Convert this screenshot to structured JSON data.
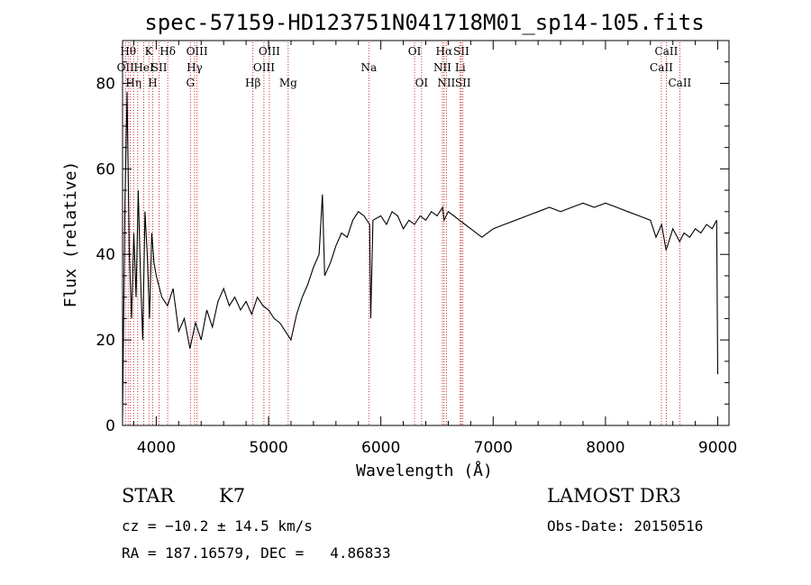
{
  "chart_data": {
    "type": "line",
    "title": "spec-57159-HD123751N041718M01_sp14-105.fits",
    "xlabel": "Wavelength (Å)",
    "ylabel": "Flux (relative)",
    "xlim": [
      3700,
      9100
    ],
    "ylim": [
      0,
      90
    ],
    "xticks": [
      4000,
      5000,
      6000,
      7000,
      8000,
      9000
    ],
    "yticks": [
      0,
      20,
      40,
      60,
      80
    ],
    "grid": false,
    "series": [
      {
        "color": "#000000",
        "x": [
          3700,
          3720,
          3740,
          3760,
          3780,
          3800,
          3820,
          3840,
          3860,
          3880,
          3900,
          3920,
          3940,
          3960,
          3980,
          4000,
          4050,
          4100,
          4150,
          4200,
          4250,
          4300,
          4350,
          4400,
          4450,
          4500,
          4550,
          4600,
          4650,
          4700,
          4750,
          4800,
          4850,
          4900,
          4950,
          5000,
          5050,
          5100,
          5150,
          5200,
          5250,
          5300,
          5350,
          5400,
          5450,
          5480,
          5500,
          5550,
          5600,
          5650,
          5700,
          5750,
          5800,
          5850,
          5900,
          5910,
          5930,
          6000,
          6050,
          6100,
          6150,
          6200,
          6250,
          6300,
          6350,
          6400,
          6450,
          6500,
          6550,
          6563,
          6600,
          6650,
          6700,
          6750,
          6800,
          6900,
          7000,
          7100,
          7200,
          7300,
          7400,
          7500,
          7600,
          7700,
          7800,
          7900,
          8000,
          8100,
          8200,
          8300,
          8400,
          8450,
          8500,
          8540,
          8600,
          8660,
          8700,
          8750,
          8800,
          8850,
          8900,
          8950,
          8990,
          9000
        ],
        "y": [
          2,
          50,
          78,
          40,
          25,
          45,
          30,
          55,
          35,
          20,
          50,
          40,
          25,
          45,
          38,
          35,
          30,
          28,
          32,
          22,
          25,
          18,
          24,
          20,
          27,
          23,
          29,
          32,
          28,
          30,
          27,
          29,
          26,
          30,
          28,
          27,
          25,
          24,
          22,
          20,
          26,
          30,
          33,
          37,
          40,
          54,
          35,
          38,
          42,
          45,
          44,
          48,
          50,
          49,
          47,
          25,
          48,
          49,
          47,
          50,
          49,
          46,
          48,
          47,
          49,
          48,
          50,
          49,
          51,
          48,
          50,
          49,
          48,
          47,
          46,
          44,
          46,
          47,
          48,
          49,
          50,
          51,
          50,
          51,
          52,
          51,
          52,
          51,
          50,
          49,
          48,
          44,
          47,
          41,
          46,
          43,
          45,
          44,
          46,
          45,
          47,
          46,
          48,
          12
        ]
      }
    ],
    "line_marks": [
      {
        "w": 3726,
        "labels": [
          "OII"
        ],
        "row": 2
      },
      {
        "w": 3750,
        "labels": [
          "Hθ"
        ],
        "row": 1
      },
      {
        "w": 3770,
        "labels": [],
        "row": 1
      },
      {
        "w": 3798,
        "labels": [
          "Hη"
        ],
        "row": 3
      },
      {
        "w": 3835,
        "labels": [],
        "row": 1
      },
      {
        "w": 3889,
        "labels": [
          "HeI"
        ],
        "row": 2
      },
      {
        "w": 3934,
        "labels": [
          "K"
        ],
        "row": 1
      },
      {
        "w": 3969,
        "labels": [
          "H"
        ],
        "row": 3
      },
      {
        "w": 4026,
        "labels": [
          "SII"
        ],
        "row": 2
      },
      {
        "w": 4102,
        "labels": [
          "Hδ"
        ],
        "row": 1
      },
      {
        "w": 4304,
        "labels": [
          "G"
        ],
        "row": 3
      },
      {
        "w": 4341,
        "labels": [
          "Hγ"
        ],
        "row": 2
      },
      {
        "w": 4363,
        "labels": [
          "OIII"
        ],
        "row": 1
      },
      {
        "w": 4861,
        "labels": [
          "Hβ"
        ],
        "row": 3
      },
      {
        "w": 4959,
        "labels": [
          "OIII"
        ],
        "row": 2
      },
      {
        "w": 5007,
        "labels": [
          "OIII"
        ],
        "row": 1
      },
      {
        "w": 5175,
        "labels": [
          "Mg"
        ],
        "row": 3
      },
      {
        "w": 5893,
        "labels": [
          "Na"
        ],
        "row": 2
      },
      {
        "w": 6300,
        "labels": [
          "OI"
        ],
        "row": 1
      },
      {
        "w": 6363,
        "labels": [
          "OI"
        ],
        "row": 3
      },
      {
        "w": 6548,
        "labels": [
          "NII"
        ],
        "row": 2
      },
      {
        "w": 6563,
        "labels": [
          "Hα"
        ],
        "row": 1
      },
      {
        "w": 6583,
        "labels": [
          "NII"
        ],
        "row": 3
      },
      {
        "w": 6707,
        "labels": [
          "Li"
        ],
        "row": 2
      },
      {
        "w": 6716,
        "labels": [
          "SII"
        ],
        "row": 1
      },
      {
        "w": 6731,
        "labels": [
          "SII"
        ],
        "row": 3
      },
      {
        "w": 8498,
        "labels": [
          "CaII"
        ],
        "row": 2
      },
      {
        "w": 8542,
        "labels": [
          "CaII"
        ],
        "row": 1
      },
      {
        "w": 8662,
        "labels": [
          "CaII"
        ],
        "row": 3
      }
    ]
  },
  "info": {
    "object_class": "STAR",
    "subclass": "K7",
    "survey": "LAMOST DR3",
    "redshift": "cz = −10.2 ± 14.5 km/s",
    "obs_date": "Obs-Date: 20150516",
    "coords": "RA = 187.16579, DEC =   4.86833"
  }
}
